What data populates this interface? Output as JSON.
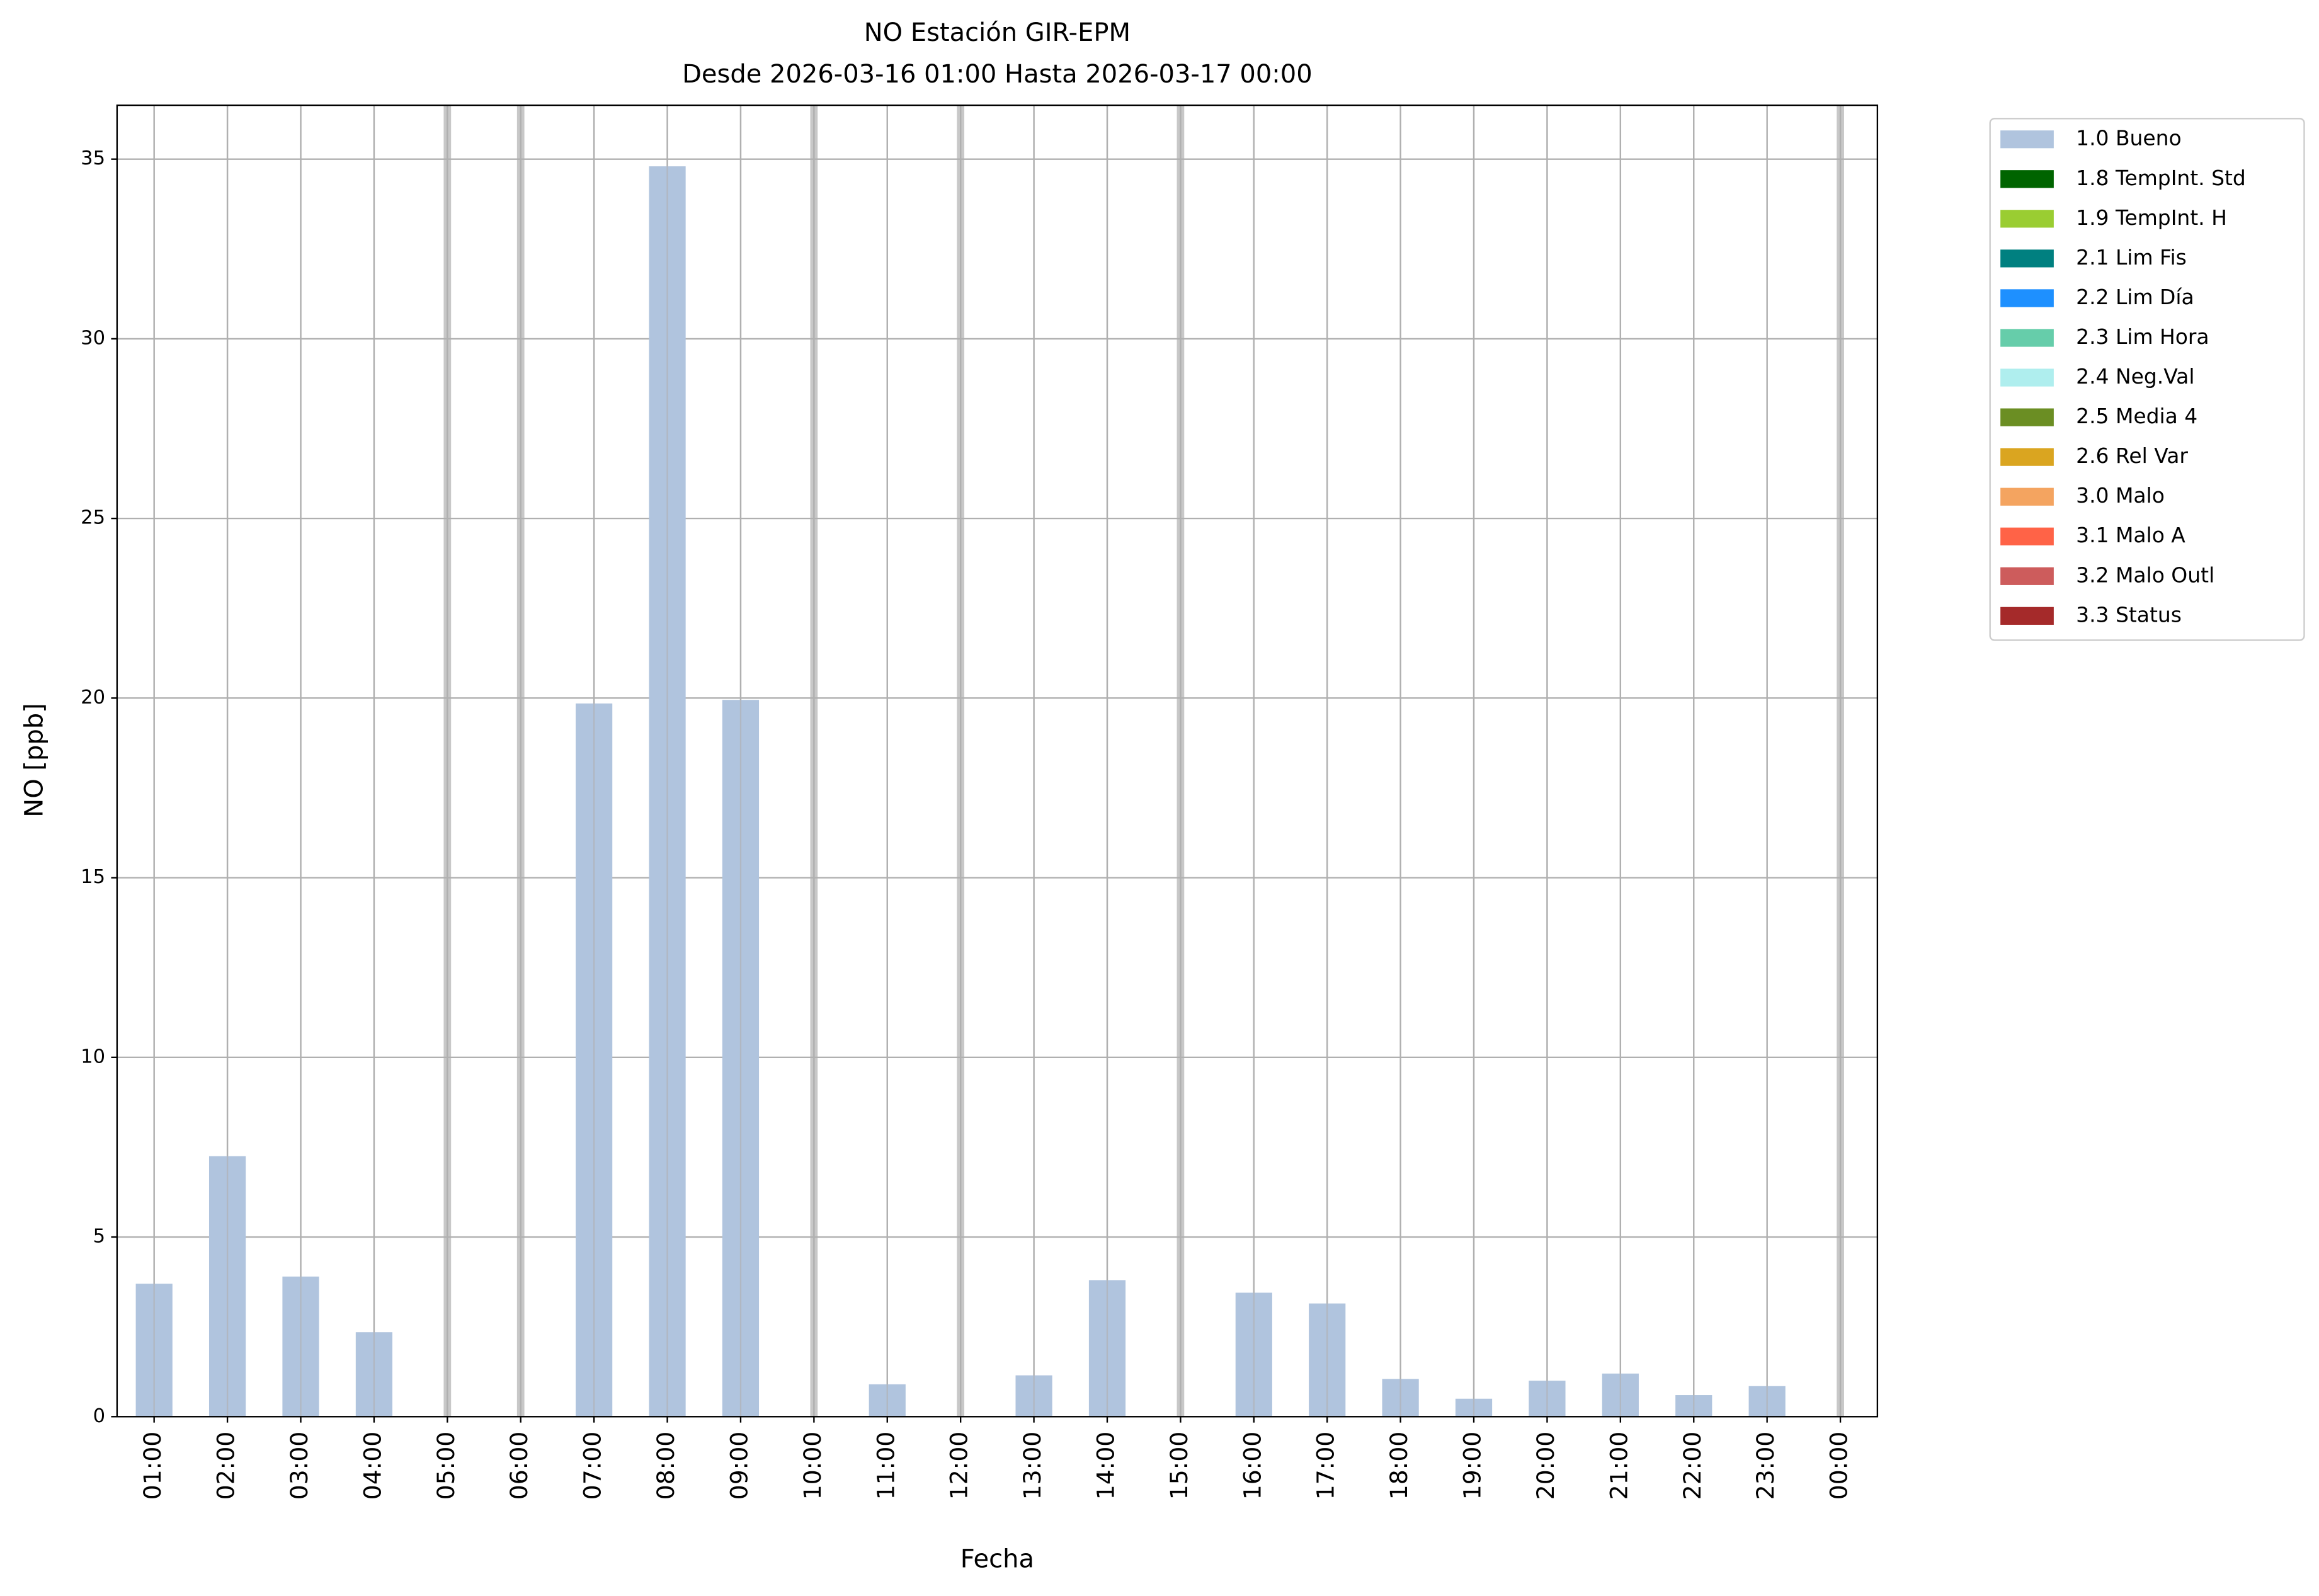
{
  "chart_data": {
    "type": "bar",
    "title": "NO Estación GIR-EPM",
    "subtitle": "Desde 2026-03-16 01:00 Hasta 2026-03-17 00:00",
    "x_label": "Fecha",
    "y_label": "NO [ppb]",
    "categories": [
      "01:00",
      "02:00",
      "03:00",
      "04:00",
      "05:00",
      "06:00",
      "07:00",
      "08:00",
      "09:00",
      "10:00",
      "11:00",
      "12:00",
      "13:00",
      "14:00",
      "15:00",
      "16:00",
      "17:00",
      "18:00",
      "19:00",
      "20:00",
      "21:00",
      "22:00",
      "23:00",
      "00:00"
    ],
    "values": [
      3.7,
      7.25,
      3.9,
      2.35,
      null,
      null,
      19.85,
      34.8,
      19.95,
      null,
      0.9,
      null,
      1.15,
      3.8,
      null,
      3.45,
      3.15,
      1.05,
      0.5,
      1.0,
      1.2,
      0.6,
      0.85,
      null
    ],
    "ylim": [
      0,
      36.5
    ],
    "yticks": [
      0,
      5,
      10,
      15,
      20,
      25,
      30,
      35
    ],
    "grid": true,
    "legend_position": "outside-upper-right",
    "legend": [
      {
        "name": "1.0 Bueno",
        "color": "#b0c4de"
      },
      {
        "name": "1.8 TempInt. Std",
        "color": "#006400"
      },
      {
        "name": "1.9 TempInt. H",
        "color": "#9acd32"
      },
      {
        "name": "2.1 Lim Fis",
        "color": "#008080"
      },
      {
        "name": "2.2 Lim Día",
        "color": "#1e90ff"
      },
      {
        "name": "2.3 Lim Hora",
        "color": "#66cdaa"
      },
      {
        "name": "2.4 Neg.Val",
        "color": "#afeeee"
      },
      {
        "name": "2.5 Media 4",
        "color": "#6b8e23"
      },
      {
        "name": "2.6 Rel Var",
        "color": "#daa520"
      },
      {
        "name": "3.0 Malo",
        "color": "#f4a460"
      },
      {
        "name": "3.1 Malo A",
        "color": "#ff6347"
      },
      {
        "name": "3.2 Malo Outl",
        "color": "#cd5c5c"
      },
      {
        "name": "3.3 Status",
        "color": "#a52a2a"
      }
    ]
  }
}
